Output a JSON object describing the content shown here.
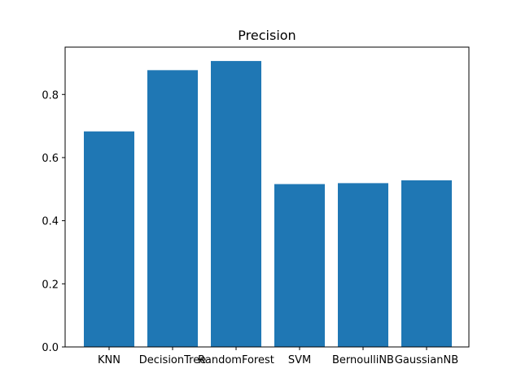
{
  "chart_data": {
    "type": "bar",
    "title": "Precision",
    "xlabel": "",
    "ylabel": "",
    "categories": [
      "KNN",
      "DecisionTree",
      "RandomForest",
      "SVM",
      "BernoulliNB",
      "GaussianNB"
    ],
    "values": [
      0.683,
      0.877,
      0.906,
      0.516,
      0.519,
      0.528
    ],
    "ylim": [
      0,
      0.95
    ],
    "yticks": [
      0.0,
      0.2,
      0.4,
      0.6,
      0.8
    ],
    "ytick_labels": [
      "0.0",
      "0.2",
      "0.4",
      "0.6",
      "0.8"
    ],
    "bar_color": "#1f77b4",
    "grid": false,
    "legend": "none"
  }
}
